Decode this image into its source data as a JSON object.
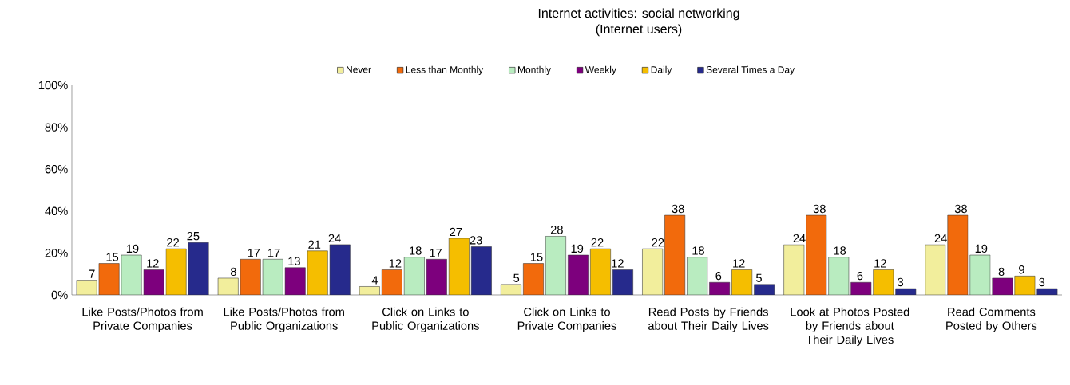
{
  "chart_data": {
    "type": "bar",
    "title": "Internet activities: social networking",
    "subtitle": "(Internet users)",
    "categories": [
      "Like Posts/Photos from Private Companies",
      "Like Posts/Photos from Public Organizations",
      "Click on Links to Public Organizations",
      "Click on Links to Private Companies",
      "Read Posts by Friends about Their Daily Lives",
      "Look at Photos Posted by Friends about Their Daily Lives",
      "Read Comments Posted by Others"
    ],
    "series": [
      {
        "name": "Never",
        "color": "#f2ee9c",
        "values": [
          7,
          8,
          4,
          5,
          22,
          24,
          24
        ]
      },
      {
        "name": "Less than Monthly",
        "color": "#f26a0c",
        "values": [
          15,
          17,
          12,
          15,
          38,
          38,
          38
        ]
      },
      {
        "name": "Monthly",
        "color": "#b9ecc0",
        "values": [
          19,
          17,
          18,
          28,
          18,
          18,
          19
        ]
      },
      {
        "name": "Weekly",
        "color": "#7d007d",
        "values": [
          12,
          13,
          17,
          19,
          6,
          6,
          8
        ]
      },
      {
        "name": "Daily",
        "color": "#f5be00",
        "values": [
          22,
          21,
          27,
          22,
          12,
          12,
          9
        ]
      },
      {
        "name": "Several Times a Day",
        "color": "#262a8c",
        "values": [
          25,
          24,
          23,
          12,
          5,
          3,
          3
        ]
      }
    ],
    "ylim": [
      0,
      100
    ],
    "yticks": [
      {
        "value": 0,
        "label": "0%"
      },
      {
        "value": 20,
        "label": "20%"
      },
      {
        "value": 40,
        "label": "40%"
      },
      {
        "value": 60,
        "label": "60%"
      },
      {
        "value": 80,
        "label": "80%"
      },
      {
        "value": 100,
        "label": "100%"
      }
    ],
    "data_labels": true,
    "legend": "top",
    "grid": false
  }
}
